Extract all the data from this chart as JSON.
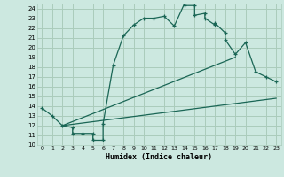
{
  "bg_color": "#cce8e0",
  "grid_color": "#aaccbb",
  "line_color": "#1a6655",
  "xlabel": "Humidex (Indice chaleur)",
  "xlim": [
    -0.5,
    23.5
  ],
  "ylim": [
    10,
    24.5
  ],
  "xticks": [
    0,
    1,
    2,
    3,
    4,
    5,
    6,
    7,
    8,
    9,
    10,
    11,
    12,
    13,
    14,
    15,
    16,
    17,
    18,
    19,
    20,
    21,
    22,
    23
  ],
  "yticks": [
    10,
    11,
    12,
    13,
    14,
    15,
    16,
    17,
    18,
    19,
    20,
    21,
    22,
    23,
    24
  ],
  "main_line": {
    "x": [
      0,
      1,
      2,
      3,
      3,
      4,
      5,
      5,
      6,
      6,
      7,
      8,
      9,
      10,
      11,
      12,
      13,
      14,
      14,
      15,
      15,
      16,
      16,
      17,
      17,
      18,
      18,
      19,
      20,
      21,
      22,
      23
    ],
    "y": [
      13.8,
      13,
      12,
      11.8,
      11.2,
      11.2,
      11.2,
      10.5,
      10.5,
      12.2,
      18.2,
      21.2,
      22.3,
      23,
      23,
      23.2,
      22.2,
      24.5,
      24.3,
      24.3,
      23.3,
      23.5,
      23,
      22.3,
      22.5,
      21.5,
      20.8,
      19.3,
      20.5,
      17.5,
      17,
      16.5
    ]
  },
  "straight_line1": {
    "x": [
      2,
      23
    ],
    "y": [
      12,
      14.8
    ]
  },
  "straight_line2": {
    "x": [
      2,
      19
    ],
    "y": [
      12,
      19
    ]
  }
}
